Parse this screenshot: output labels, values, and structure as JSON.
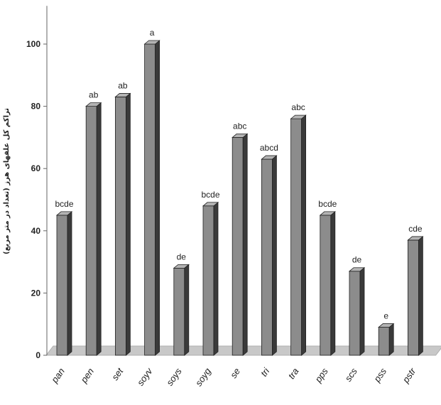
{
  "chart_data": {
    "type": "bar",
    "title": "",
    "xlabel": "",
    "ylabel": "تراکم کل علفهای هرز (تعداد در متر مربع)",
    "ylim": [
      0,
      110
    ],
    "yticks": [
      0,
      20,
      40,
      60,
      80,
      100
    ],
    "categories": [
      "pan",
      "pen",
      "set",
      "soyv",
      "soys",
      "soyg",
      "se",
      "tri",
      "tra",
      "pps",
      "scs",
      "pss",
      "pstr"
    ],
    "values": [
      45,
      80,
      83,
      100,
      28,
      48,
      70,
      63,
      76,
      45,
      27,
      9,
      37
    ],
    "significance_letters": [
      "bcde",
      "ab",
      "ab",
      "a",
      "de",
      "bcde",
      "abc",
      "abcd",
      "abc",
      "bcde",
      "de",
      "e",
      "cde"
    ],
    "grid": false,
    "legend": "none",
    "colors": {
      "bar_front": "#8c8c8c",
      "bar_side": "#3a3a3a",
      "bar_top": "#b4b4b4",
      "floor": "#c8c8c8",
      "axis": "#666666"
    }
  }
}
